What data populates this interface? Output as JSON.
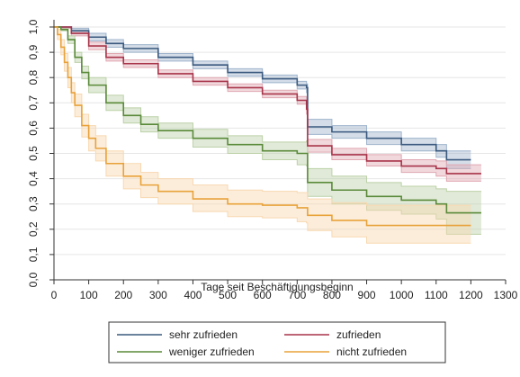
{
  "chart_data": {
    "type": "line",
    "title": "",
    "xlabel": "Tage seit Beschäftigungsbeginn",
    "ylabel": "",
    "xlim": [
      0,
      1300
    ],
    "ylim": [
      0.0,
      1.0
    ],
    "x_ticks": [
      "0",
      "100",
      "200",
      "300",
      "400",
      "500",
      "600",
      "700",
      "800",
      "900",
      "1000",
      "1100",
      "1200",
      "1300"
    ],
    "y_ticks": [
      "0,0",
      "0,1",
      "0,2",
      "0,3",
      "0,4",
      "0,5",
      "0,6",
      "0,7",
      "0,8",
      "0,9",
      "1,0"
    ],
    "grid": true,
    "legend_position": "bottom",
    "series": [
      {
        "name": "sehr zufrieden",
        "color": "#3b5a7f",
        "band_color": "#9fb4cc",
        "x": [
          0,
          20,
          50,
          100,
          150,
          200,
          300,
          400,
          500,
          600,
          700,
          727,
          730,
          800,
          900,
          1000,
          1100,
          1130,
          1200
        ],
        "y": [
          1.0,
          1.0,
          0.985,
          0.96,
          0.935,
          0.915,
          0.88,
          0.85,
          0.82,
          0.795,
          0.77,
          0.76,
          0.605,
          0.585,
          0.56,
          0.535,
          0.51,
          0.475,
          0.475
        ],
        "lower": [
          1.0,
          0.995,
          0.975,
          0.945,
          0.92,
          0.9,
          0.865,
          0.835,
          0.805,
          0.78,
          0.755,
          0.74,
          0.575,
          0.56,
          0.535,
          0.51,
          0.485,
          0.44,
          0.44
        ],
        "upper": [
          1.0,
          1.0,
          0.995,
          0.975,
          0.95,
          0.93,
          0.895,
          0.865,
          0.835,
          0.81,
          0.785,
          0.775,
          0.635,
          0.61,
          0.585,
          0.56,
          0.535,
          0.51,
          0.51
        ]
      },
      {
        "name": "zufrieden",
        "color": "#a8344a",
        "band_color": "#e0a8b2",
        "x": [
          0,
          20,
          50,
          100,
          150,
          200,
          300,
          400,
          500,
          600,
          700,
          727,
          730,
          800,
          900,
          1000,
          1100,
          1130,
          1230
        ],
        "y": [
          1.0,
          1.0,
          0.975,
          0.925,
          0.88,
          0.855,
          0.815,
          0.785,
          0.76,
          0.735,
          0.71,
          0.675,
          0.53,
          0.495,
          0.47,
          0.45,
          0.44,
          0.42,
          0.42
        ],
        "lower": [
          1.0,
          0.995,
          0.965,
          0.91,
          0.865,
          0.84,
          0.8,
          0.77,
          0.745,
          0.72,
          0.695,
          0.655,
          0.505,
          0.475,
          0.45,
          0.425,
          0.41,
          0.39,
          0.39
        ],
        "upper": [
          1.0,
          1.0,
          0.985,
          0.94,
          0.895,
          0.87,
          0.83,
          0.8,
          0.775,
          0.75,
          0.725,
          0.695,
          0.555,
          0.52,
          0.495,
          0.475,
          0.47,
          0.455,
          0.455
        ]
      },
      {
        "name": "weniger zufrieden",
        "color": "#5a8a3a",
        "band_color": "#bcd1a8",
        "x": [
          0,
          20,
          40,
          60,
          80,
          100,
          150,
          200,
          250,
          300,
          400,
          500,
          600,
          700,
          727,
          730,
          800,
          900,
          1000,
          1100,
          1130,
          1230
        ],
        "y": [
          1.0,
          0.99,
          0.95,
          0.88,
          0.82,
          0.77,
          0.7,
          0.65,
          0.615,
          0.59,
          0.56,
          0.535,
          0.51,
          0.5,
          0.5,
          0.385,
          0.355,
          0.33,
          0.315,
          0.3,
          0.265,
          0.265
        ],
        "lower": [
          1.0,
          0.985,
          0.935,
          0.86,
          0.795,
          0.74,
          0.67,
          0.62,
          0.585,
          0.56,
          0.525,
          0.5,
          0.475,
          0.455,
          0.45,
          0.33,
          0.3,
          0.275,
          0.26,
          0.24,
          0.18,
          0.18
        ],
        "upper": [
          1.0,
          1.0,
          0.965,
          0.9,
          0.845,
          0.8,
          0.73,
          0.68,
          0.645,
          0.62,
          0.595,
          0.57,
          0.545,
          0.545,
          0.55,
          0.44,
          0.41,
          0.385,
          0.37,
          0.36,
          0.35,
          0.35
        ]
      },
      {
        "name": "nicht zufrieden",
        "color": "#e8a23a",
        "band_color": "#f8d8b0",
        "x": [
          0,
          10,
          20,
          30,
          40,
          50,
          60,
          80,
          100,
          120,
          150,
          200,
          250,
          300,
          400,
          500,
          600,
          700,
          727,
          730,
          800,
          900,
          1000,
          1100,
          1200
        ],
        "y": [
          1.0,
          0.97,
          0.92,
          0.86,
          0.8,
          0.74,
          0.69,
          0.61,
          0.56,
          0.52,
          0.46,
          0.41,
          0.375,
          0.35,
          0.32,
          0.3,
          0.295,
          0.285,
          0.285,
          0.255,
          0.235,
          0.215,
          0.215,
          0.215,
          0.215
        ],
        "lower": [
          1.0,
          0.95,
          0.89,
          0.825,
          0.76,
          0.7,
          0.645,
          0.565,
          0.51,
          0.47,
          0.41,
          0.36,
          0.325,
          0.3,
          0.27,
          0.25,
          0.245,
          0.23,
          0.225,
          0.195,
          0.17,
          0.145,
          0.145,
          0.145,
          0.145
        ],
        "upper": [
          1.0,
          0.99,
          0.95,
          0.895,
          0.84,
          0.78,
          0.735,
          0.655,
          0.61,
          0.57,
          0.51,
          0.46,
          0.425,
          0.4,
          0.375,
          0.355,
          0.35,
          0.345,
          0.345,
          0.32,
          0.305,
          0.295,
          0.295,
          0.295,
          0.295
        ]
      }
    ]
  }
}
